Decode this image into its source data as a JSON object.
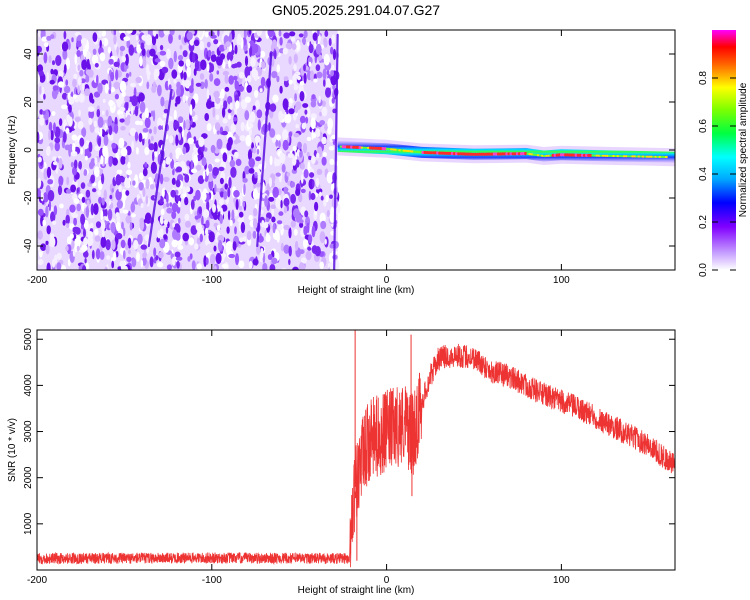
{
  "title": "GN05.2025.291.04.07.G27",
  "chart_data": [
    {
      "type": "heatmap",
      "xlabel": "Height of straight line (km)",
      "ylabel": "Frequency (Hz)",
      "xlim": [
        -200,
        165
      ],
      "ylim": [
        -50,
        50
      ],
      "xticks": [
        -200,
        -100,
        0,
        100
      ],
      "yticks": [
        -40,
        -20,
        0,
        20,
        40
      ],
      "colorbar": {
        "label": "Normalized spectral amplitude",
        "range": [
          0,
          1
        ],
        "ticks": [
          0.0,
          0.2,
          0.4,
          0.6,
          0.8
        ],
        "colors": [
          "#ffffff",
          "#8a2be2",
          "#0000ff",
          "#00ffff",
          "#00ff00",
          "#ffff00",
          "#ff0000",
          "#ff00ff"
        ]
      },
      "noise_region": {
        "x": [
          -200,
          -28
        ],
        "y": [
          -50,
          50
        ]
      },
      "signal_ridge": [
        {
          "x": -28,
          "freq": 1.5
        },
        {
          "x": 0,
          "freq": 0.5
        },
        {
          "x": 20,
          "freq": -1
        },
        {
          "x": 50,
          "freq": -1.8
        },
        {
          "x": 80,
          "freq": -1.5
        },
        {
          "x": 90,
          "freq": -2.5
        },
        {
          "x": 100,
          "freq": -2
        },
        {
          "x": 130,
          "freq": -2.5
        },
        {
          "x": 165,
          "freq": -3
        }
      ],
      "diagonal_streaks": [
        {
          "x": [
            -136,
            -123
          ],
          "freq": [
            -40,
            25
          ]
        },
        {
          "x": [
            -74,
            -66
          ],
          "freq": [
            -40,
            40
          ]
        },
        {
          "x": [
            -30,
            -28
          ],
          "freq": [
            -50,
            48
          ]
        }
      ]
    },
    {
      "type": "line",
      "xlabel": "Height of straight line (km)",
      "ylabel": "SNR (10 * v/v)",
      "xlim": [
        -200,
        165
      ],
      "ylim": [
        0,
        5200
      ],
      "xticks": [
        -200,
        -100,
        0,
        100
      ],
      "yticks": [
        1000,
        2000,
        3000,
        4000,
        5000
      ],
      "color": "#ee3333",
      "envelope": [
        {
          "x": -200,
          "y": 250
        },
        {
          "x": -100,
          "y": 260
        },
        {
          "x": -21,
          "y": 250
        },
        {
          "x": -20,
          "y": 1200
        },
        {
          "x": -18,
          "y": 1800
        },
        {
          "x": -15,
          "y": 2300
        },
        {
          "x": -10,
          "y": 2800
        },
        {
          "x": 0,
          "y": 3000
        },
        {
          "x": 10,
          "y": 3200
        },
        {
          "x": 15,
          "y": 2900
        },
        {
          "x": 20,
          "y": 3600
        },
        {
          "x": 25,
          "y": 4200
        },
        {
          "x": 30,
          "y": 4600
        },
        {
          "x": 40,
          "y": 4650
        },
        {
          "x": 50,
          "y": 4600
        },
        {
          "x": 60,
          "y": 4300
        },
        {
          "x": 70,
          "y": 4200
        },
        {
          "x": 90,
          "y": 3800
        },
        {
          "x": 110,
          "y": 3500
        },
        {
          "x": 130,
          "y": 3100
        },
        {
          "x": 150,
          "y": 2700
        },
        {
          "x": 165,
          "y": 2250
        }
      ],
      "spikes": [
        {
          "x": -18,
          "y": 5200
        },
        {
          "x": -17,
          "y": 200
        },
        {
          "x": 14,
          "y": 5100
        },
        {
          "x": 14.5,
          "y": 1600
        }
      ]
    }
  ]
}
